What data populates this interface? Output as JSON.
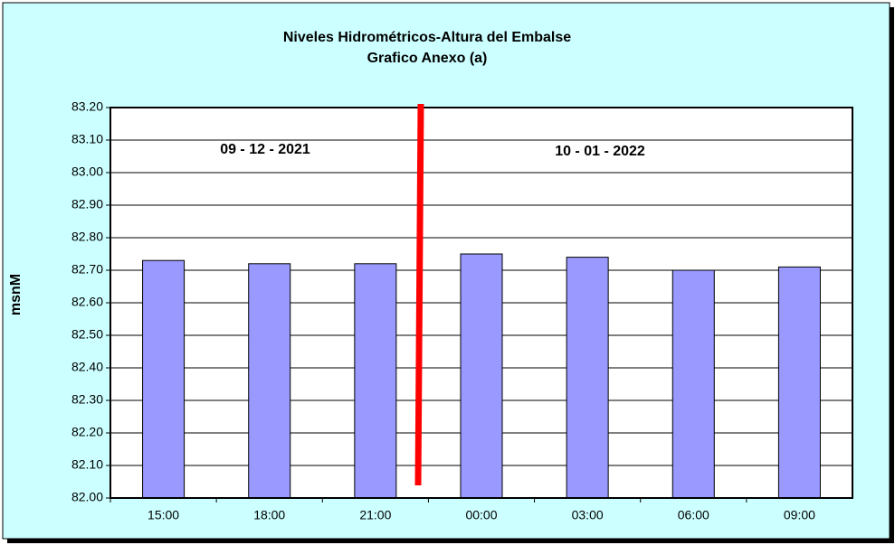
{
  "chart_data": {
    "type": "bar",
    "title": "Niveles Hidrométricos-Altura del Embalse",
    "subtitle": "Grafico Anexo (a)",
    "y_label": "msnM",
    "categories": [
      "15:00",
      "18:00",
      "21:00",
      "00:00",
      "03:00",
      "06:00",
      "09:00"
    ],
    "values": [
      82.73,
      82.72,
      82.72,
      82.75,
      82.74,
      82.7,
      82.71
    ],
    "color": "#9999ff",
    "ylim": [
      82.0,
      83.2
    ],
    "yticks": [
      {
        "value": 82.0,
        "label": "82.00"
      },
      {
        "value": 82.1,
        "label": "82.10"
      },
      {
        "value": 82.2,
        "label": "82.20"
      },
      {
        "value": 82.3,
        "label": "82.30"
      },
      {
        "value": 82.4,
        "label": "82.40"
      },
      {
        "value": 82.5,
        "label": "82.50"
      },
      {
        "value": 82.6,
        "label": "82.60"
      },
      {
        "value": 82.7,
        "label": "82.70"
      },
      {
        "value": 82.8,
        "label": "82.80"
      },
      {
        "value": 82.9,
        "label": "82.90"
      },
      {
        "value": 83.0,
        "label": "83.00"
      },
      {
        "value": 83.1,
        "label": "83.10"
      },
      {
        "value": 83.2,
        "label": "83.20"
      }
    ],
    "grid": true,
    "annotations": [
      "09 - 12 - 2021",
      "10 - 01 - 2022"
    ]
  }
}
